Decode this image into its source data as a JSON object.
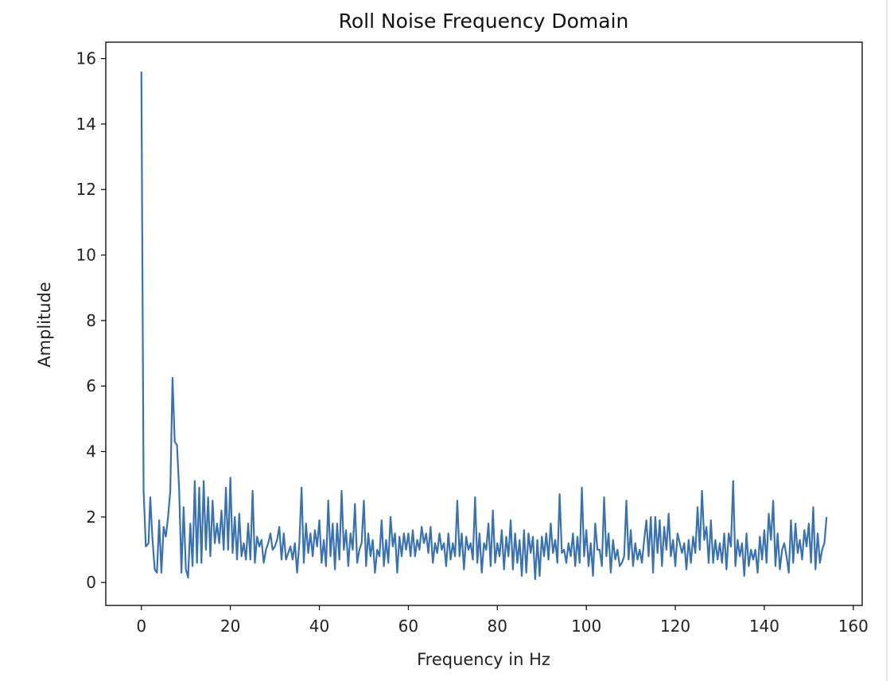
{
  "chart_data": {
    "type": "line",
    "title": "Roll Noise Frequency Domain",
    "xlabel": "Frequency in Hz",
    "ylabel": "Amplitude",
    "xlim": [
      -8,
      162
    ],
    "ylim": [
      -0.7,
      16.5
    ],
    "xticks": [
      0,
      20,
      40,
      60,
      80,
      100,
      120,
      140,
      160
    ],
    "yticks": [
      0,
      2,
      4,
      6,
      8,
      10,
      12,
      14,
      16
    ],
    "grid": false,
    "legend": "none",
    "series": [
      {
        "color": "#3a72b0",
        "points": [
          [
            0,
            15.6
          ],
          [
            0.5,
            2.8
          ],
          [
            1,
            1.1
          ],
          [
            1.6,
            1.2
          ],
          [
            2,
            2.6
          ],
          [
            2.5,
            1.3
          ],
          [
            3,
            0.4
          ],
          [
            3.5,
            0.3
          ],
          [
            4,
            1.9
          ],
          [
            4.5,
            0.3
          ],
          [
            5,
            1.7
          ],
          [
            5.5,
            1.4
          ],
          [
            6,
            2.0
          ],
          [
            6.5,
            2.8
          ],
          [
            7,
            6.25
          ],
          [
            7.5,
            4.3
          ],
          [
            8,
            4.2
          ],
          [
            8.5,
            2.8
          ],
          [
            9,
            0.3
          ],
          [
            9.5,
            2.3
          ],
          [
            10,
            0.4
          ],
          [
            10.5,
            0.15
          ],
          [
            11,
            1.8
          ],
          [
            11.5,
            0.5
          ],
          [
            12,
            3.1
          ],
          [
            12.5,
            0.6
          ],
          [
            13,
            2.9
          ],
          [
            13.5,
            0.6
          ],
          [
            14,
            3.1
          ],
          [
            14.5,
            1.0
          ],
          [
            15,
            2.6
          ],
          [
            15.5,
            0.8
          ],
          [
            16,
            2.5
          ],
          [
            16.5,
            1.2
          ],
          [
            17,
            1.8
          ],
          [
            17.5,
            1.2
          ],
          [
            18,
            2.2
          ],
          [
            18.5,
            1.0
          ],
          [
            19,
            2.9
          ],
          [
            19.5,
            1.0
          ],
          [
            20,
            3.2
          ],
          [
            20.5,
            0.9
          ],
          [
            21,
            2.0
          ],
          [
            21.5,
            0.7
          ],
          [
            22,
            2.1
          ],
          [
            22.5,
            0.8
          ],
          [
            23,
            1.2
          ],
          [
            23.5,
            0.7
          ],
          [
            24,
            1.8
          ],
          [
            24.5,
            0.7
          ],
          [
            25,
            2.8
          ],
          [
            25.5,
            0.6
          ],
          [
            26,
            1.4
          ],
          [
            26.5,
            1.1
          ],
          [
            27,
            1.3
          ],
          [
            27.5,
            0.6
          ],
          [
            28,
            1.0
          ],
          [
            28.5,
            1.2
          ],
          [
            29,
            1.5
          ],
          [
            29.5,
            1.0
          ],
          [
            30,
            1.1
          ],
          [
            30.5,
            1.3
          ],
          [
            31,
            1.7
          ],
          [
            31.5,
            0.7
          ],
          [
            32,
            1.5
          ],
          [
            32.5,
            0.7
          ],
          [
            33,
            0.9
          ],
          [
            33.5,
            1.1
          ],
          [
            34,
            0.7
          ],
          [
            34.5,
            1.2
          ],
          [
            35,
            0.3
          ],
          [
            35.5,
            1.2
          ],
          [
            36,
            2.9
          ],
          [
            36.5,
            0.6
          ],
          [
            37,
            1.8
          ],
          [
            37.5,
            0.9
          ],
          [
            38,
            1.5
          ],
          [
            38.5,
            0.8
          ],
          [
            39,
            1.6
          ],
          [
            39.5,
            1.1
          ],
          [
            40,
            1.9
          ],
          [
            40.5,
            0.6
          ],
          [
            41,
            1.3
          ],
          [
            41.5,
            0.5
          ],
          [
            42,
            2.5
          ],
          [
            42.5,
            0.8
          ],
          [
            43,
            1.8
          ],
          [
            43.5,
            0.4
          ],
          [
            44,
            1.8
          ],
          [
            44.5,
            0.7
          ],
          [
            45,
            2.8
          ],
          [
            45.5,
            1.0
          ],
          [
            46,
            1.6
          ],
          [
            46.5,
            0.5
          ],
          [
            47,
            1.5
          ],
          [
            47.5,
            1.0
          ],
          [
            48,
            2.4
          ],
          [
            48.5,
            0.6
          ],
          [
            49,
            1.0
          ],
          [
            49.5,
            1.2
          ],
          [
            50,
            2.5
          ],
          [
            50.5,
            0.5
          ],
          [
            51,
            1.5
          ],
          [
            51.5,
            0.8
          ],
          [
            52,
            1.3
          ],
          [
            52.5,
            0.3
          ],
          [
            53,
            1.0
          ],
          [
            53.5,
            0.8
          ],
          [
            54,
            1.9
          ],
          [
            54.5,
            0.5
          ],
          [
            55,
            1.3
          ],
          [
            55.5,
            0.6
          ],
          [
            56,
            2.0
          ],
          [
            56.5,
            1.1
          ],
          [
            57,
            1.5
          ],
          [
            57.5,
            0.3
          ],
          [
            58,
            1.4
          ],
          [
            58.5,
            0.8
          ],
          [
            59,
            1.5
          ],
          [
            59.5,
            1.0
          ],
          [
            60,
            1.5
          ],
          [
            60.5,
            0.8
          ],
          [
            61,
            1.6
          ],
          [
            61.5,
            0.8
          ],
          [
            62,
            1.3
          ],
          [
            62.5,
            1.0
          ],
          [
            63,
            1.7
          ],
          [
            63.5,
            1.2
          ],
          [
            64,
            1.5
          ],
          [
            64.5,
            0.9
          ],
          [
            65,
            1.7
          ],
          [
            65.5,
            0.6
          ],
          [
            66,
            1.2
          ],
          [
            66.5,
            0.9
          ],
          [
            67,
            1.5
          ],
          [
            67.5,
            1.0
          ],
          [
            68,
            1.2
          ],
          [
            68.5,
            0.5
          ],
          [
            69,
            1.5
          ],
          [
            69.5,
            0.7
          ],
          [
            70,
            1.2
          ],
          [
            70.5,
            0.8
          ],
          [
            71,
            2.5
          ],
          [
            71.5,
            0.8
          ],
          [
            72,
            1.5
          ],
          [
            72.5,
            0.4
          ],
          [
            73,
            1.4
          ],
          [
            73.5,
            1.0
          ],
          [
            74,
            1.2
          ],
          [
            74.5,
            0.7
          ],
          [
            75,
            2.6
          ],
          [
            75.5,
            0.6
          ],
          [
            76,
            1.5
          ],
          [
            76.5,
            0.3
          ],
          [
            77,
            1.2
          ],
          [
            77.5,
            1.0
          ],
          [
            78,
            1.8
          ],
          [
            78.5,
            0.5
          ],
          [
            79,
            2.2
          ],
          [
            79.5,
            0.6
          ],
          [
            80,
            1.2
          ],
          [
            80.5,
            0.8
          ],
          [
            81,
            1.6
          ],
          [
            81.5,
            0.4
          ],
          [
            82,
            1.4
          ],
          [
            82.5,
            0.8
          ],
          [
            83,
            1.9
          ],
          [
            83.5,
            0.4
          ],
          [
            84,
            1.5
          ],
          [
            84.5,
            0.6
          ],
          [
            85,
            1.3
          ],
          [
            85.5,
            0.2
          ],
          [
            86,
            1.6
          ],
          [
            86.5,
            0.3
          ],
          [
            87,
            1.5
          ],
          [
            87.5,
            0.9
          ],
          [
            88,
            1.4
          ],
          [
            88.5,
            0.1
          ],
          [
            89,
            1.3
          ],
          [
            89.5,
            0.2
          ],
          [
            90,
            1.4
          ],
          [
            90.5,
            0.8
          ],
          [
            91,
            1.5
          ],
          [
            91.5,
            0.7
          ],
          [
            92,
            1.8
          ],
          [
            92.5,
            0.9
          ],
          [
            93,
            1.3
          ],
          [
            93.5,
            0.6
          ],
          [
            94,
            2.7
          ],
          [
            94.5,
            0.9
          ],
          [
            95,
            1.0
          ],
          [
            95.5,
            0.6
          ],
          [
            96,
            1.2
          ],
          [
            96.5,
            0.8
          ],
          [
            97,
            1.5
          ],
          [
            97.5,
            0.5
          ],
          [
            98,
            1.4
          ],
          [
            98.5,
            0.6
          ],
          [
            99,
            2.9
          ],
          [
            99.5,
            0.8
          ],
          [
            100,
            1.6
          ],
          [
            100.5,
            0.5
          ],
          [
            101,
            1.2
          ],
          [
            101.5,
            0.2
          ],
          [
            102,
            1.8
          ],
          [
            102.5,
            1.0
          ],
          [
            103,
            1.0
          ],
          [
            103.5,
            0.5
          ],
          [
            104,
            2.6
          ],
          [
            104.5,
            0.8
          ],
          [
            105,
            1.5
          ],
          [
            105.5,
            0.3
          ],
          [
            106,
            1.3
          ],
          [
            106.5,
            0.7
          ],
          [
            107,
            1.0
          ],
          [
            107.5,
            0.5
          ],
          [
            108,
            0.6
          ],
          [
            108.5,
            0.8
          ],
          [
            109,
            2.5
          ],
          [
            109.5,
            0.7
          ],
          [
            110,
            1.6
          ],
          [
            110.5,
            0.5
          ],
          [
            111,
            1.2
          ],
          [
            111.5,
            0.7
          ],
          [
            112,
            1.0
          ],
          [
            112.5,
            0.6
          ],
          [
            113,
            1.3
          ],
          [
            113.5,
            1.9
          ],
          [
            114,
            0.8
          ],
          [
            114.5,
            2.0
          ],
          [
            115,
            0.3
          ],
          [
            115.5,
            2.0
          ],
          [
            116,
            0.9
          ],
          [
            116.5,
            1.9
          ],
          [
            117,
            0.5
          ],
          [
            117.5,
            1.7
          ],
          [
            118,
            1.0
          ],
          [
            118.5,
            2.1
          ],
          [
            119,
            0.8
          ],
          [
            119.5,
            1.3
          ],
          [
            120,
            0.5
          ],
          [
            120.5,
            1.5
          ],
          [
            121,
            1.2
          ],
          [
            121.5,
            0.9
          ],
          [
            122,
            1.2
          ],
          [
            122.5,
            0.4
          ],
          [
            123,
            1.3
          ],
          [
            123.5,
            0.6
          ],
          [
            124,
            1.4
          ],
          [
            124.5,
            0.9
          ],
          [
            125,
            2.3
          ],
          [
            125.5,
            1.0
          ],
          [
            126,
            2.8
          ],
          [
            126.5,
            1.3
          ],
          [
            127,
            1.7
          ],
          [
            127.5,
            0.6
          ],
          [
            128,
            1.9
          ],
          [
            128.5,
            0.6
          ],
          [
            129,
            1.3
          ],
          [
            129.5,
            0.7
          ],
          [
            130,
            1.2
          ],
          [
            130.5,
            0.6
          ],
          [
            131,
            1.5
          ],
          [
            131.5,
            0.4
          ],
          [
            132,
            1.5
          ],
          [
            132.5,
            1.1
          ],
          [
            133,
            3.1
          ],
          [
            133.5,
            0.5
          ],
          [
            134,
            1.3
          ],
          [
            134.5,
            0.8
          ],
          [
            135,
            1.2
          ],
          [
            135.5,
            0.2
          ],
          [
            136,
            1.5
          ],
          [
            136.5,
            0.5
          ],
          [
            137,
            1.0
          ],
          [
            137.5,
            0.7
          ],
          [
            138,
            1.0
          ],
          [
            138.5,
            0.3
          ],
          [
            139,
            1.4
          ],
          [
            139.5,
            0.7
          ],
          [
            140,
            1.6
          ],
          [
            140.5,
            0.6
          ],
          [
            141,
            2.1
          ],
          [
            141.5,
            1.3
          ],
          [
            142,
            2.5
          ],
          [
            142.5,
            0.5
          ],
          [
            143,
            1.5
          ],
          [
            143.5,
            0.4
          ],
          [
            144,
            1.0
          ],
          [
            144.5,
            1.2
          ],
          [
            145,
            0.8
          ],
          [
            145.5,
            0.3
          ],
          [
            146,
            1.9
          ],
          [
            146.5,
            0.6
          ],
          [
            147,
            1.8
          ],
          [
            147.5,
            0.9
          ],
          [
            148,
            1.3
          ],
          [
            148.5,
            0.7
          ],
          [
            149,
            1.6
          ],
          [
            149.5,
            1.1
          ],
          [
            150,
            1.8
          ],
          [
            150.5,
            0.6
          ],
          [
            151,
            2.3
          ],
          [
            151.5,
            0.4
          ],
          [
            152,
            1.5
          ],
          [
            152.5,
            0.6
          ],
          [
            153,
            1.0
          ],
          [
            153.5,
            1.2
          ],
          [
            154,
            2.0
          ]
        ]
      }
    ]
  }
}
